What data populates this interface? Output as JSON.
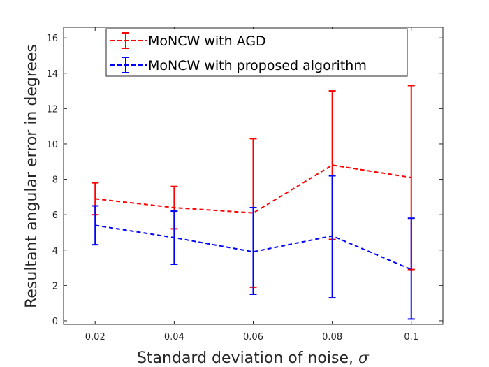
{
  "chart_data": {
    "type": "line",
    "title": "",
    "xlabel": "Standard deviation of noise, ",
    "xlabel_symbol": "σ",
    "ylabel": "Resultant angular error in degrees",
    "xlim": [
      0.012,
      0.108
    ],
    "ylim": [
      -0.2,
      16.6
    ],
    "xticks": [
      0.02,
      0.04,
      0.06,
      0.08,
      0.1
    ],
    "xtick_labels": [
      "0.02",
      "0.04",
      "0.06",
      "0.08",
      "0.1"
    ],
    "yticks": [
      0,
      2,
      4,
      6,
      8,
      10,
      12,
      14,
      16
    ],
    "ytick_labels": [
      "0",
      "2",
      "4",
      "6",
      "8",
      "10",
      "12",
      "14",
      "16"
    ],
    "grid": false,
    "legend_location": "top",
    "series": [
      {
        "name": "MoNCW with AGD",
        "color": "#ff0000",
        "line_style": "dashed",
        "x": [
          0.02,
          0.04,
          0.06,
          0.08,
          0.1
        ],
        "y": [
          6.9,
          6.4,
          6.1,
          8.8,
          8.1
        ],
        "err_low": [
          6.0,
          5.2,
          1.9,
          4.6,
          2.9
        ],
        "err_high": [
          7.8,
          7.6,
          10.3,
          13.0,
          13.3
        ]
      },
      {
        "name": "MoNCW with proposed algorithm",
        "color": "#0000ff",
        "line_style": "dashed",
        "x": [
          0.02,
          0.04,
          0.06,
          0.08,
          0.1
        ],
        "y": [
          5.4,
          4.7,
          3.9,
          4.8,
          2.9
        ],
        "err_low": [
          4.3,
          3.2,
          1.5,
          1.3,
          0.1
        ],
        "err_high": [
          6.5,
          6.2,
          6.4,
          8.2,
          5.8
        ]
      }
    ]
  }
}
